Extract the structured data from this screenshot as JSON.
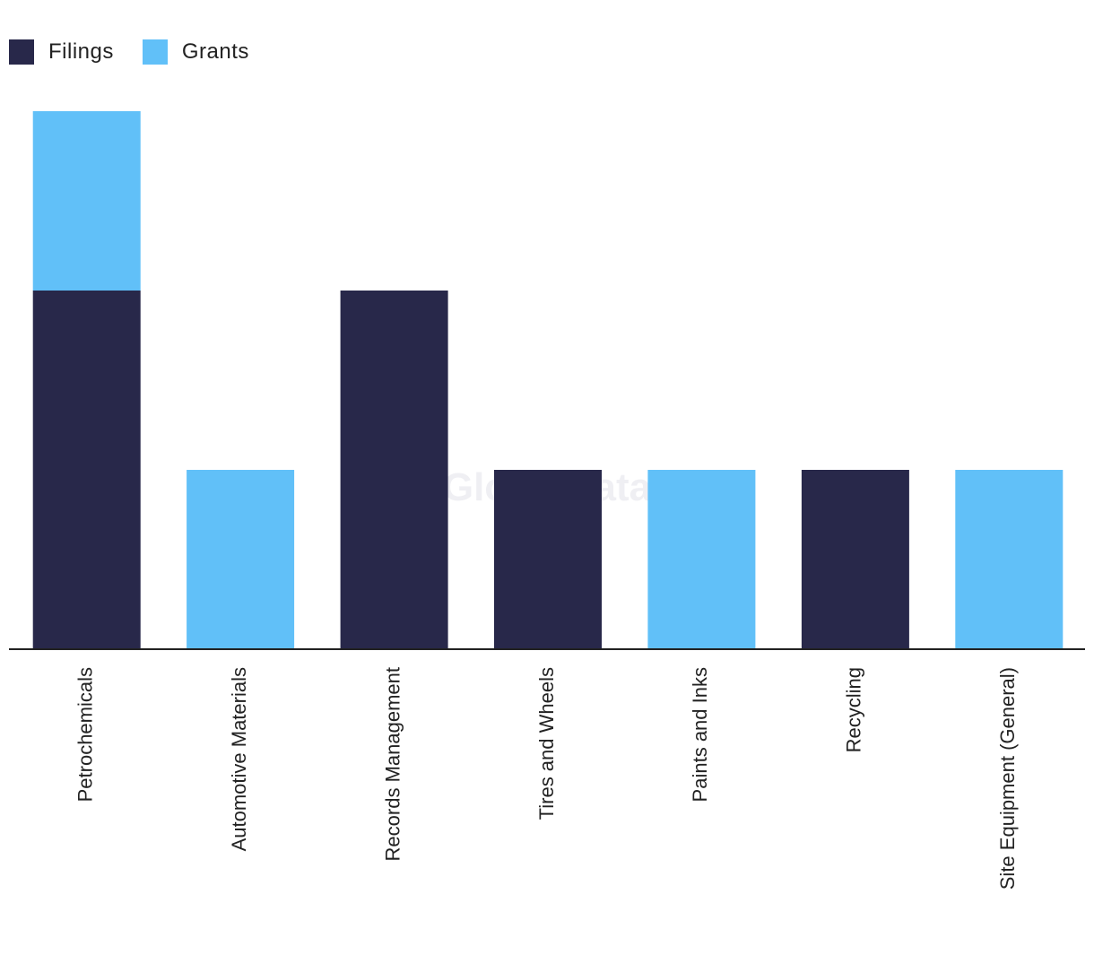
{
  "legend": {
    "filings_label": "Filings",
    "grants_label": "Grants"
  },
  "watermark": "GlobalData",
  "colors": {
    "filings": "#28284a",
    "grants": "#61c0f8",
    "axis": "#222222"
  },
  "chart_data": {
    "type": "bar",
    "stacked": true,
    "categories": [
      "Petrochemicals",
      "Automotive Materials",
      "Records Management",
      "Tires and Wheels",
      "Paints and Inks",
      "Recycling",
      "Site Equipment (General)"
    ],
    "series": [
      {
        "name": "Filings",
        "values": [
          2,
          0,
          2,
          1,
          0,
          1,
          0
        ]
      },
      {
        "name": "Grants",
        "values": [
          1,
          1,
          0,
          0,
          1,
          0,
          1
        ]
      }
    ],
    "title": "",
    "xlabel": "",
    "ylabel": "",
    "ylim": [
      0,
      3
    ],
    "grid": false,
    "legend_position": "top-left"
  }
}
